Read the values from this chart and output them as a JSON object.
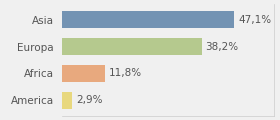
{
  "categories": [
    "Asia",
    "Europa",
    "Africa",
    "America"
  ],
  "values": [
    47.1,
    38.2,
    11.8,
    2.9
  ],
  "bar_colors": [
    "#7393b3",
    "#b5c98e",
    "#e8a97e",
    "#e8d87e"
  ],
  "labels": [
    "47,1%",
    "38,2%",
    "11,8%",
    "2,9%"
  ],
  "xlim": [
    0,
    58
  ],
  "background_color": "#f0f0f0",
  "bar_height": 0.62,
  "label_fontsize": 7.5,
  "tick_fontsize": 7.5,
  "figsize": [
    2.8,
    1.2
  ],
  "dpi": 100
}
